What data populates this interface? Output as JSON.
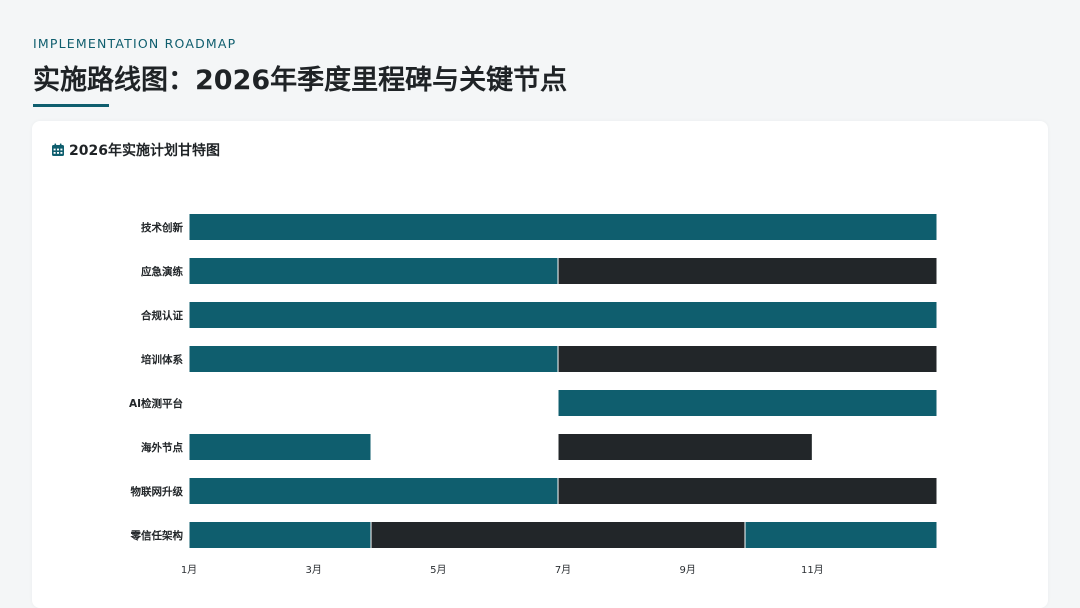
{
  "header": {
    "eyebrow": "IMPLEMENTATION ROADMAP",
    "title": "实施路线图：2026年季度里程碑与关键节点"
  },
  "card": {
    "title": "2026年实施计划甘特图",
    "icon": "calendar-icon"
  },
  "colors": {
    "accent": "#0f5e6e",
    "dark": "#222629"
  },
  "chart_data": {
    "type": "bar",
    "orientation": "horizontal-gantt",
    "title": "2026年实施计划甘特图",
    "x_range": [
      1,
      13
    ],
    "x_ticks": [
      {
        "value": 1,
        "label": "1月"
      },
      {
        "value": 3,
        "label": "3月"
      },
      {
        "value": 5,
        "label": "5月"
      },
      {
        "value": 7,
        "label": "7月"
      },
      {
        "value": 9,
        "label": "9月"
      },
      {
        "value": 11,
        "label": "11月"
      }
    ],
    "grid": false,
    "categories": [
      "技术创新",
      "应急演练",
      "合规认证",
      "培训体系",
      "AI检测平台",
      "海外节点",
      "物联网升级",
      "零信任架构"
    ],
    "tasks": [
      {
        "category": "技术创新",
        "segments": [
          {
            "start": 1,
            "end": 13,
            "color": "#0f5e6e"
          }
        ]
      },
      {
        "category": "应急演练",
        "segments": [
          {
            "start": 1,
            "end": 6.92,
            "color": "#0f5e6e"
          },
          {
            "start": 6.92,
            "end": 13,
            "color": "#222629"
          }
        ]
      },
      {
        "category": "合规认证",
        "segments": [
          {
            "start": 1,
            "end": 13,
            "color": "#0f5e6e"
          }
        ]
      },
      {
        "category": "培训体系",
        "segments": [
          {
            "start": 1,
            "end": 6.92,
            "color": "#0f5e6e"
          },
          {
            "start": 6.92,
            "end": 13,
            "color": "#222629"
          }
        ]
      },
      {
        "category": "AI检测平台",
        "segments": [
          {
            "start": 6.92,
            "end": 13,
            "color": "#0f5e6e"
          }
        ]
      },
      {
        "category": "海外节点",
        "segments": [
          {
            "start": 1,
            "end": 3.92,
            "color": "#0f5e6e"
          },
          {
            "start": 6.92,
            "end": 11,
            "color": "#222629"
          }
        ]
      },
      {
        "category": "物联网升级",
        "segments": [
          {
            "start": 1,
            "end": 6.92,
            "color": "#0f5e6e"
          },
          {
            "start": 6.92,
            "end": 13,
            "color": "#222629"
          }
        ]
      },
      {
        "category": "零信任架构",
        "segments": [
          {
            "start": 1,
            "end": 3.92,
            "color": "#0f5e6e"
          },
          {
            "start": 3.92,
            "end": 9.92,
            "color": "#222629"
          },
          {
            "start": 9.92,
            "end": 13,
            "color": "#0f5e6e"
          }
        ]
      }
    ]
  }
}
